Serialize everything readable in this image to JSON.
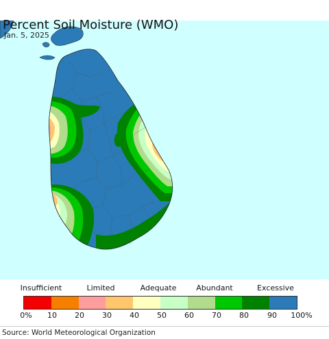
{
  "title": "Percent Soil Moisture (WMO)",
  "date": "Jan. 5, 2025",
  "legend": {
    "categories": [
      "Insufficient",
      "Limited",
      "Adequate",
      "Abundant",
      "Excessive"
    ],
    "ticks": [
      "0%",
      "10",
      "20",
      "30",
      "40",
      "50",
      "60",
      "70",
      "80",
      "90",
      "100%"
    ],
    "colors": [
      "#f40000",
      "#f77f00",
      "#ff9c9c",
      "#ffc66e",
      "#ffffc0",
      "#c7ffc7",
      "#b0dc8c",
      "#00c800",
      "#008200",
      "#2a7bb8"
    ]
  },
  "map_colors": {
    "ocean": "#cfffff",
    "excessive": "#2a7bb8",
    "high": "#008200",
    "abundant": "#00c800",
    "mid": "#b0dc8c",
    "adequate": "#c7ffc7",
    "moderate": "#ffffc0",
    "limited_low": "#ffc66e",
    "low": "#ff9c9c"
  },
  "source": "Source: World Meteorological Organization"
}
